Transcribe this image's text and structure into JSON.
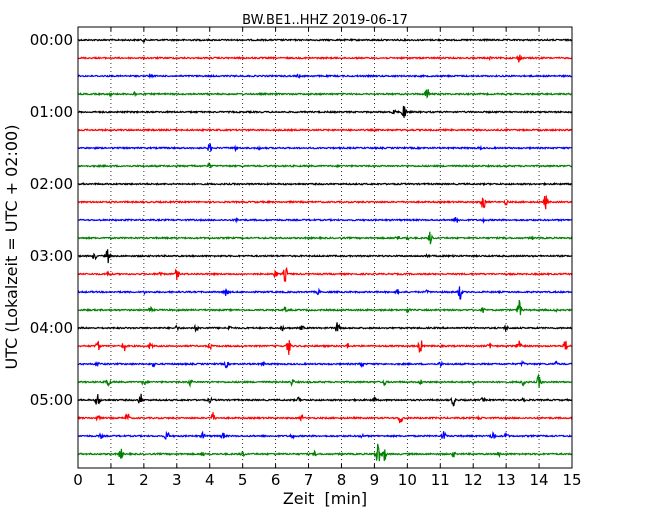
{
  "chart_data": {
    "type": "line",
    "title": "BW.BE1..HHZ 2019-06-17",
    "xlabel": "Zeit  [min]",
    "ylabel": "UTC (Lokalzeit = UTC + 02:00)",
    "xlim": [
      0,
      15
    ],
    "x_ticks": [
      "0",
      "1",
      "2",
      "3",
      "4",
      "5",
      "6",
      "7",
      "8",
      "9",
      "10",
      "11",
      "12",
      "13",
      "14",
      "15"
    ],
    "y_tick_labels": [
      "00:00",
      "01:00",
      "02:00",
      "03:00",
      "04:00",
      "05:00"
    ],
    "trace_interval_min": 15,
    "grid": "vertical dotted lines at each minute",
    "colors": [
      "#000000",
      "#ff0000",
      "#0000ff",
      "#008000"
    ],
    "traces": [
      {
        "start": "00:00",
        "color": "#000000",
        "events": [
          [
            2.0,
            2
          ]
        ]
      },
      {
        "start": "00:15",
        "color": "#ff0000",
        "events": [
          [
            13.4,
            5
          ],
          [
            12.5,
            2
          ]
        ]
      },
      {
        "start": "00:30",
        "color": "#0000ff",
        "events": [
          [
            2.2,
            2
          ],
          [
            6.7,
            2
          ]
        ]
      },
      {
        "start": "00:45",
        "color": "#008000",
        "events": [
          [
            10.6,
            7
          ],
          [
            1.7,
            3
          ],
          [
            1.0,
            2
          ]
        ]
      },
      {
        "start": "01:00",
        "color": "#000000",
        "events": [
          [
            9.9,
            9
          ],
          [
            9.6,
            3
          ]
        ]
      },
      {
        "start": "01:15",
        "color": "#ff0000",
        "events": []
      },
      {
        "start": "01:30",
        "color": "#0000ff",
        "events": [
          [
            4.0,
            5
          ],
          [
            4.8,
            3
          ],
          [
            5.5,
            2
          ],
          [
            12.2,
            2
          ]
        ]
      },
      {
        "start": "01:45",
        "color": "#008000",
        "events": [
          [
            3.5,
            2
          ],
          [
            4.0,
            3
          ]
        ]
      },
      {
        "start": "02:00",
        "color": "#000000",
        "events": []
      },
      {
        "start": "02:15",
        "color": "#ff0000",
        "events": [
          [
            12.3,
            9
          ],
          [
            14.2,
            8
          ],
          [
            13.0,
            3
          ]
        ]
      },
      {
        "start": "02:30",
        "color": "#0000ff",
        "events": [
          [
            11.5,
            5
          ],
          [
            4.8,
            2
          ],
          [
            12.3,
            2
          ]
        ]
      },
      {
        "start": "02:45",
        "color": "#008000",
        "events": [
          [
            10.7,
            7
          ],
          [
            9.7,
            4
          ],
          [
            10.0,
            3
          ],
          [
            13.8,
            2
          ]
        ]
      },
      {
        "start": "03:00",
        "color": "#000000",
        "events": [
          [
            0.9,
            8
          ],
          [
            0.5,
            4
          ],
          [
            10.6,
            3
          ],
          [
            11.4,
            2
          ]
        ]
      },
      {
        "start": "03:15",
        "color": "#ff0000",
        "events": [
          [
            6.3,
            8
          ],
          [
            3.0,
            6
          ],
          [
            6.0,
            4
          ],
          [
            2.5,
            3
          ],
          [
            0.9,
            3
          ]
        ]
      },
      {
        "start": "03:30",
        "color": "#0000ff",
        "events": [
          [
            11.6,
            8
          ],
          [
            4.5,
            5
          ],
          [
            7.3,
            3
          ],
          [
            9.7,
            3
          ],
          [
            2.0,
            2
          ],
          [
            10.6,
            2
          ]
        ]
      },
      {
        "start": "03:45",
        "color": "#008000",
        "events": [
          [
            13.4,
            10
          ],
          [
            2.2,
            3
          ],
          [
            6.3,
            3
          ],
          [
            10.0,
            3
          ],
          [
            12.3,
            3
          ],
          [
            14.5,
            2
          ]
        ]
      },
      {
        "start": "04:00",
        "color": "#000000",
        "events": [
          [
            7.9,
            10
          ],
          [
            3.6,
            4
          ],
          [
            3.0,
            3
          ],
          [
            4.6,
            3
          ],
          [
            6.2,
            3
          ],
          [
            6.8,
            3
          ],
          [
            13.0,
            3
          ]
        ]
      },
      {
        "start": "04:15",
        "color": "#ff0000",
        "events": [
          [
            6.4,
            9
          ],
          [
            10.4,
            8
          ],
          [
            13.4,
            8
          ],
          [
            0.6,
            6
          ],
          [
            1.4,
            6
          ],
          [
            14.8,
            6
          ],
          [
            2.2,
            4
          ],
          [
            4.0,
            4
          ],
          [
            12.5,
            4
          ],
          [
            8.2,
            3
          ]
        ]
      },
      {
        "start": "04:30",
        "color": "#0000ff",
        "events": [
          [
            4.5,
            4
          ],
          [
            8.6,
            4
          ],
          [
            0.6,
            3
          ],
          [
            2.3,
            3
          ],
          [
            5.6,
            3
          ],
          [
            11.0,
            3
          ],
          [
            13.5,
            3
          ],
          [
            14.5,
            3
          ]
        ]
      },
      {
        "start": "04:45",
        "color": "#008000",
        "events": [
          [
            14.0,
            8
          ],
          [
            0.9,
            6
          ],
          [
            13.5,
            6
          ],
          [
            2.0,
            4
          ],
          [
            3.4,
            4
          ],
          [
            6.5,
            4
          ],
          [
            9.3,
            4
          ],
          [
            10.4,
            3
          ],
          [
            12.0,
            3
          ]
        ]
      },
      {
        "start": "05:00",
        "color": "#000000",
        "events": [
          [
            0.6,
            9
          ],
          [
            1.9,
            7
          ],
          [
            11.4,
            6
          ],
          [
            13.5,
            5
          ],
          [
            4.0,
            3
          ],
          [
            6.7,
            3
          ],
          [
            9.0,
            3
          ],
          [
            12.3,
            3
          ]
        ]
      },
      {
        "start": "05:15",
        "color": "#ff0000",
        "events": [
          [
            9.8,
            8
          ],
          [
            1.5,
            6
          ],
          [
            4.1,
            6
          ],
          [
            0.6,
            3
          ],
          [
            6.8,
            3
          ],
          [
            12.2,
            3
          ]
        ]
      },
      {
        "start": "05:30",
        "color": "#0000ff",
        "events": [
          [
            2.7,
            6
          ],
          [
            11.1,
            6
          ],
          [
            12.6,
            6
          ],
          [
            3.8,
            4
          ],
          [
            4.4,
            4
          ],
          [
            13.0,
            4
          ],
          [
            0.7,
            3
          ],
          [
            6.5,
            3
          ],
          [
            8.6,
            3
          ]
        ]
      },
      {
        "start": "05:45",
        "color": "#008000",
        "events": [
          [
            9.1,
            14
          ],
          [
            1.3,
            6
          ],
          [
            9.3,
            8
          ],
          [
            3.8,
            3
          ],
          [
            5.0,
            3
          ],
          [
            7.2,
            3
          ],
          [
            11.4,
            3
          ],
          [
            12.8,
            3
          ]
        ]
      }
    ]
  }
}
